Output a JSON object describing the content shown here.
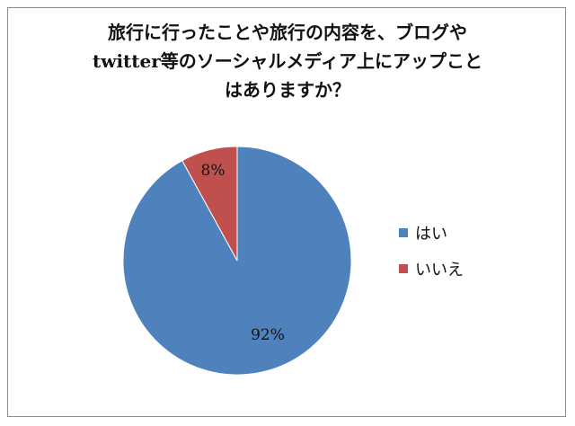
{
  "chart_data": {
    "type": "pie",
    "title_lines": [
      "旅行に行ったことや旅行の内容を、ブログや",
      "twitter等のソーシャルメディア上にアップこと",
      "はありますか？"
    ],
    "categories": [
      "はい",
      "いいえ"
    ],
    "values": [
      92,
      8
    ],
    "data_labels": [
      "92%",
      "8%"
    ],
    "colors": [
      "#4f81bd",
      "#c0504d"
    ],
    "legend_position": "right"
  }
}
